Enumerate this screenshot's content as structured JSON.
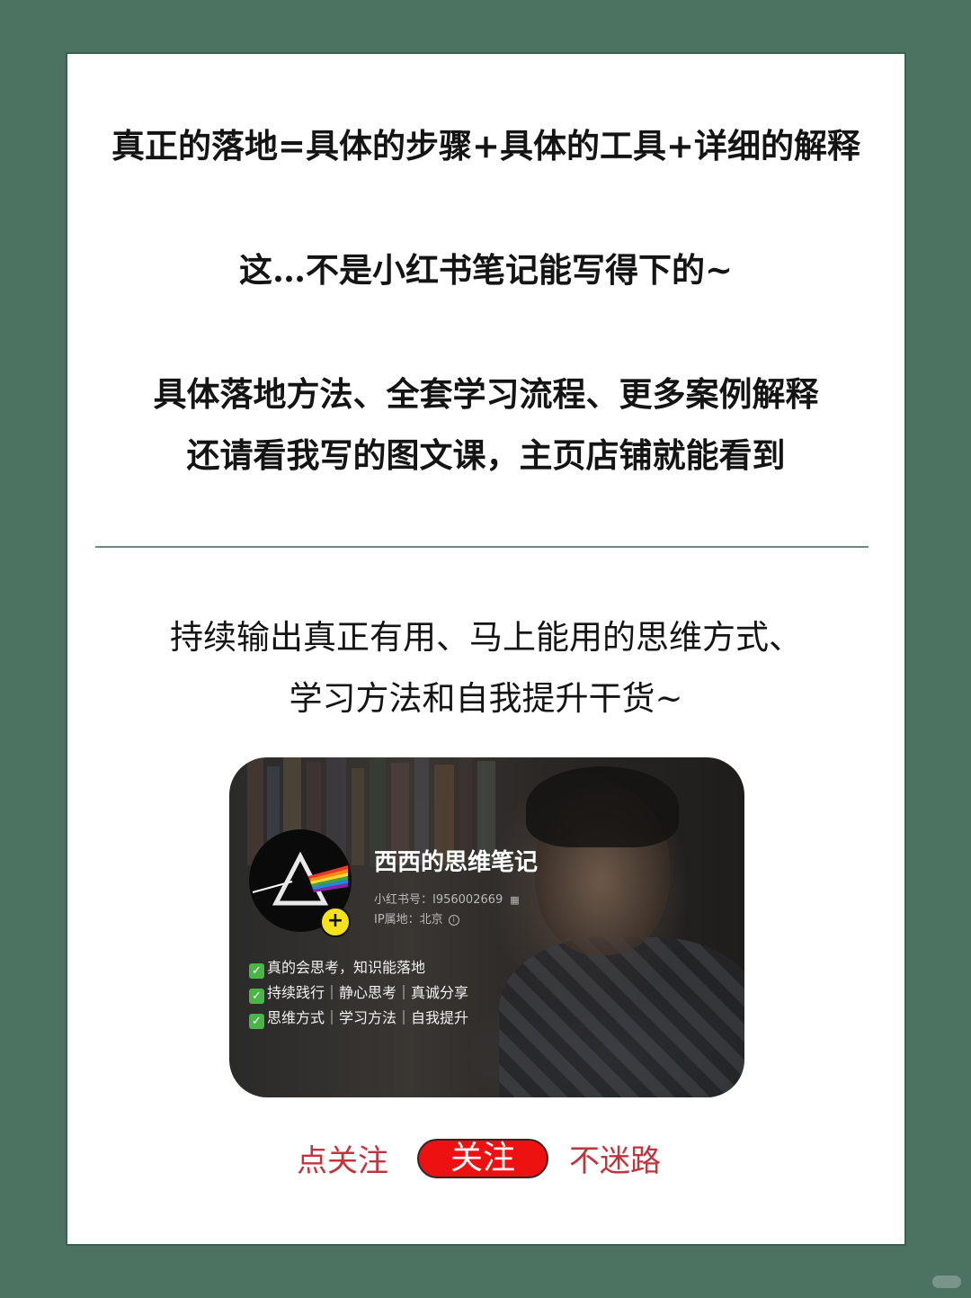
{
  "headline": "真正的落地=具体的步骤+具体的工具+详细的解释",
  "line2": "这…不是小红书笔记能写得下的~",
  "line3": "具体落地方法、全套学习流程、更多案例解释",
  "line4": "还请看我写的图文课，主页店铺就能看到",
  "line5": "持续输出真正有用、马上能用的思维方式、",
  "line6": "学习方法和自我提升干货~",
  "profile": {
    "name": "西西的思维笔记",
    "id_text": "小红书号：I956002669",
    "ip_text": "IP属地：北京",
    "bio": [
      "真的会思考，知识能落地",
      "持续践行｜静心思考｜真诚分享",
      "思维方式｜学习方法｜自我提升"
    ],
    "avatar_icon": "prism-icon",
    "follow_badge": "+"
  },
  "cta": {
    "left": "点关注",
    "button": "关注",
    "right": "不迷路"
  },
  "colors": {
    "background": "#4c7262",
    "cta_text": "#c0343d",
    "button": "#ee1111"
  }
}
